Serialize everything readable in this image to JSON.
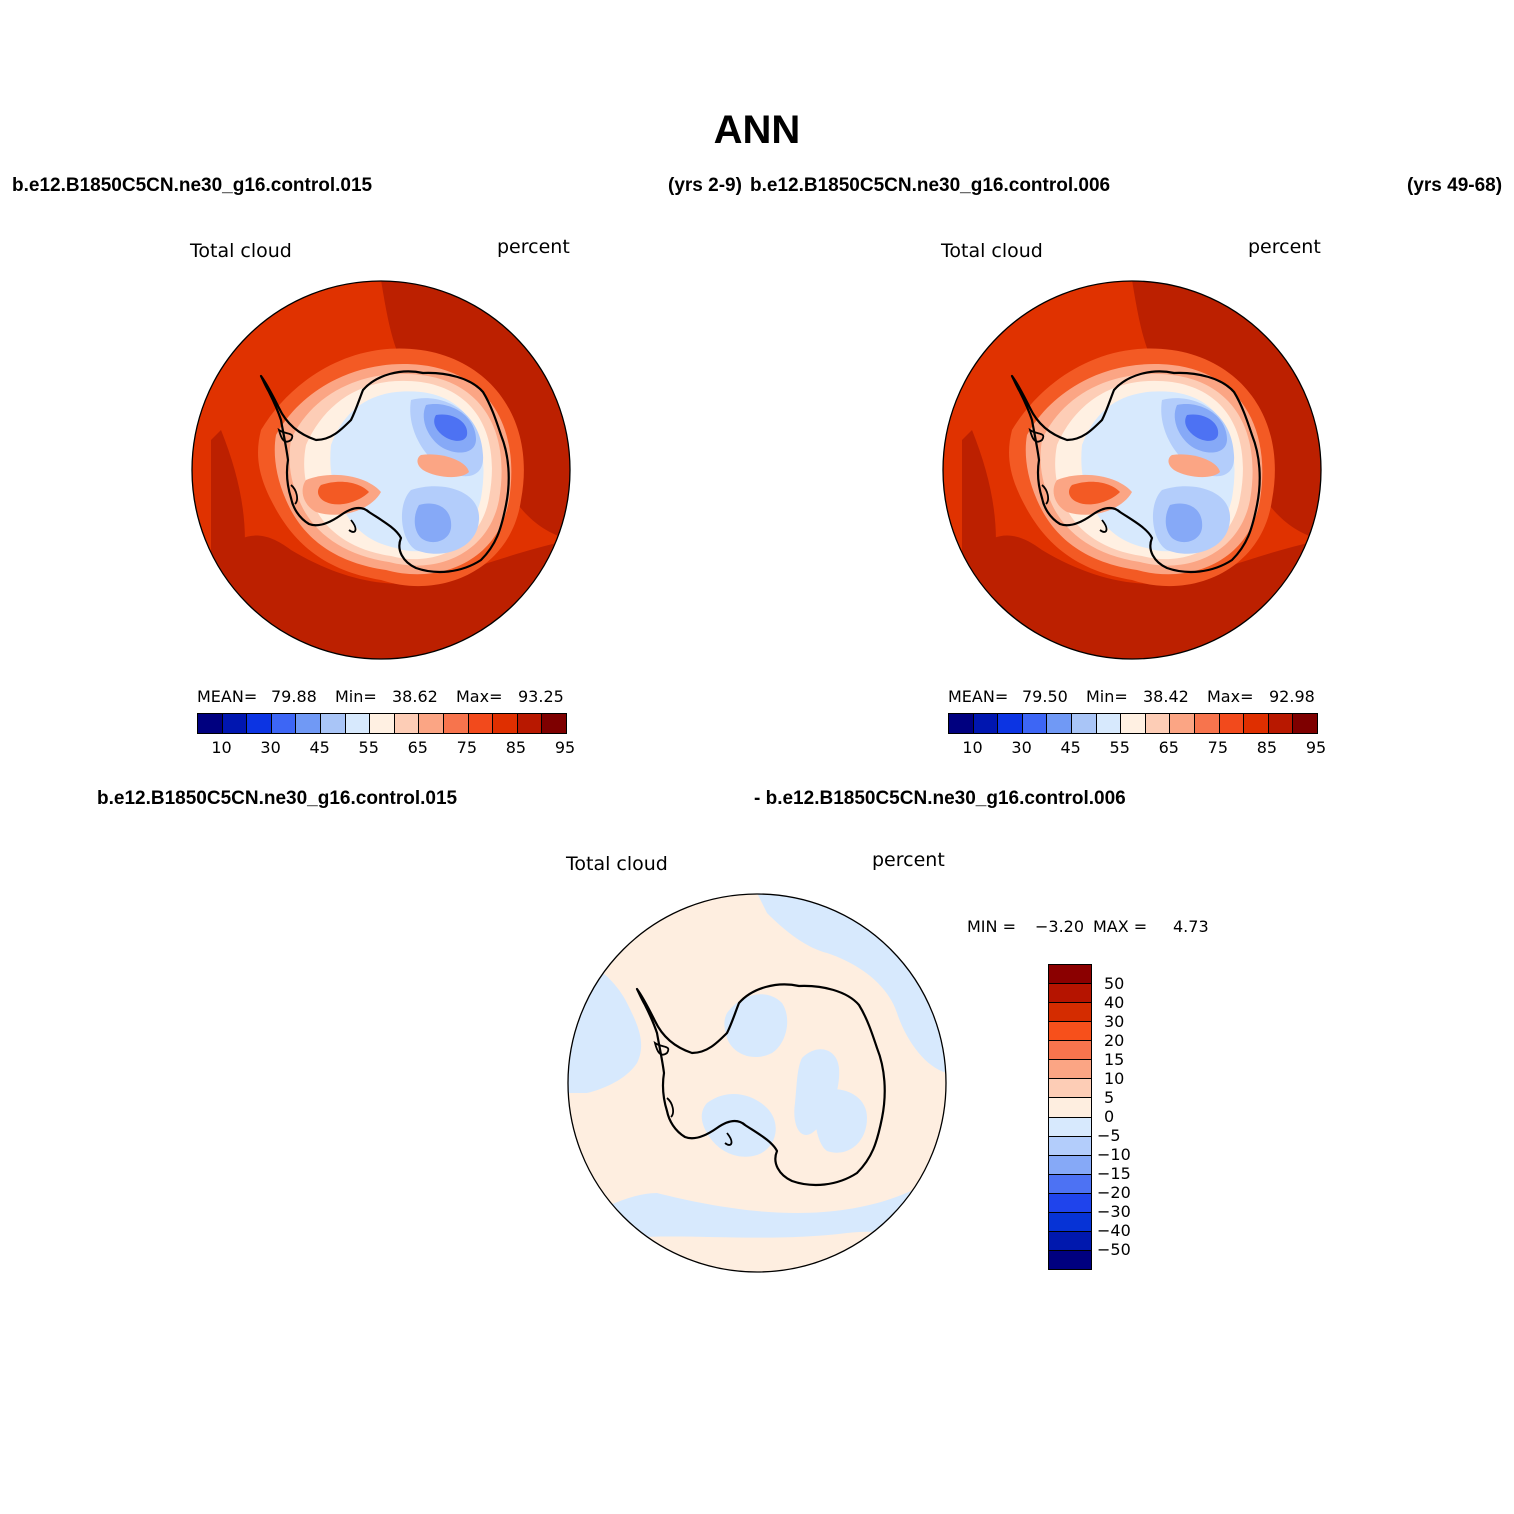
{
  "title": "ANN",
  "top_left": {
    "case": "b.e12.B1850C5CN.ne30_g16.control.015",
    "years": "(yrs 2-9)",
    "variable": "Total cloud",
    "units": "percent",
    "mean_label": "MEAN=",
    "mean": "79.88",
    "min_label": "Min=",
    "min": "38.62",
    "max_label": "Max=",
    "max": "93.25"
  },
  "top_right": {
    "case": "b.e12.B1850C5CN.ne30_g16.control.006",
    "years": "(yrs 49-68)",
    "variable": "Total cloud",
    "units": "percent",
    "mean_label": "MEAN=",
    "mean": "79.50",
    "min_label": "Min=",
    "min": "38.42",
    "max_label": "Max=",
    "max": "92.98"
  },
  "diff": {
    "case_a": "b.e12.B1850C5CN.ne30_g16.control.015",
    "case_b": "- b.e12.B1850C5CN.ne30_g16.control.006",
    "variable": "Total cloud",
    "units": "percent",
    "min_label": "MIN =",
    "min": "−3.20",
    "max_label": "MAX =",
    "max": "4.73"
  },
  "colorbar_abs": {
    "colors": [
      "#00007f",
      "#0016b0",
      "#0c34e3",
      "#3d66f5",
      "#7099f5",
      "#a9c5f7",
      "#d7e9fd",
      "#fff0e2",
      "#fdcdb6",
      "#fba584",
      "#f7744d",
      "#f24a1c",
      "#df2f00",
      "#b81800",
      "#7e0000"
    ],
    "tick_labels": [
      "10",
      "30",
      "45",
      "55",
      "65",
      "75",
      "85",
      "95"
    ]
  },
  "colorbar_diff": {
    "colors": [
      "#8b0000",
      "#b51400",
      "#d42c00",
      "#f7501b",
      "#f7744d",
      "#fba584",
      "#fdcdb6",
      "#feeee0",
      "#d7e9fd",
      "#b3cdfb",
      "#86a9f7",
      "#4d72f3",
      "#1f44ec",
      "#0633d6",
      "#0018ae",
      "#00007f"
    ],
    "tick_labels": [
      "50",
      "40",
      "30",
      "20",
      "15",
      "10",
      "5",
      "0",
      "−5",
      "−10",
      "−15",
      "−20",
      "−30",
      "−40",
      "−50"
    ]
  },
  "map_colors": {
    "deep_red": "#bc2000",
    "red": "#e03200",
    "orange": "#f35a24",
    "salmon": "#fba584",
    "peach": "#fdcdb6",
    "cream": "#fff0e2",
    "light_blue": "#d7e9fd",
    "pale_blue": "#b3cdfb",
    "mid_blue": "#86a9f7",
    "blue": "#4d72f3",
    "diff_peach": "#feeee0",
    "diff_blue": "#d7e9fd"
  }
}
